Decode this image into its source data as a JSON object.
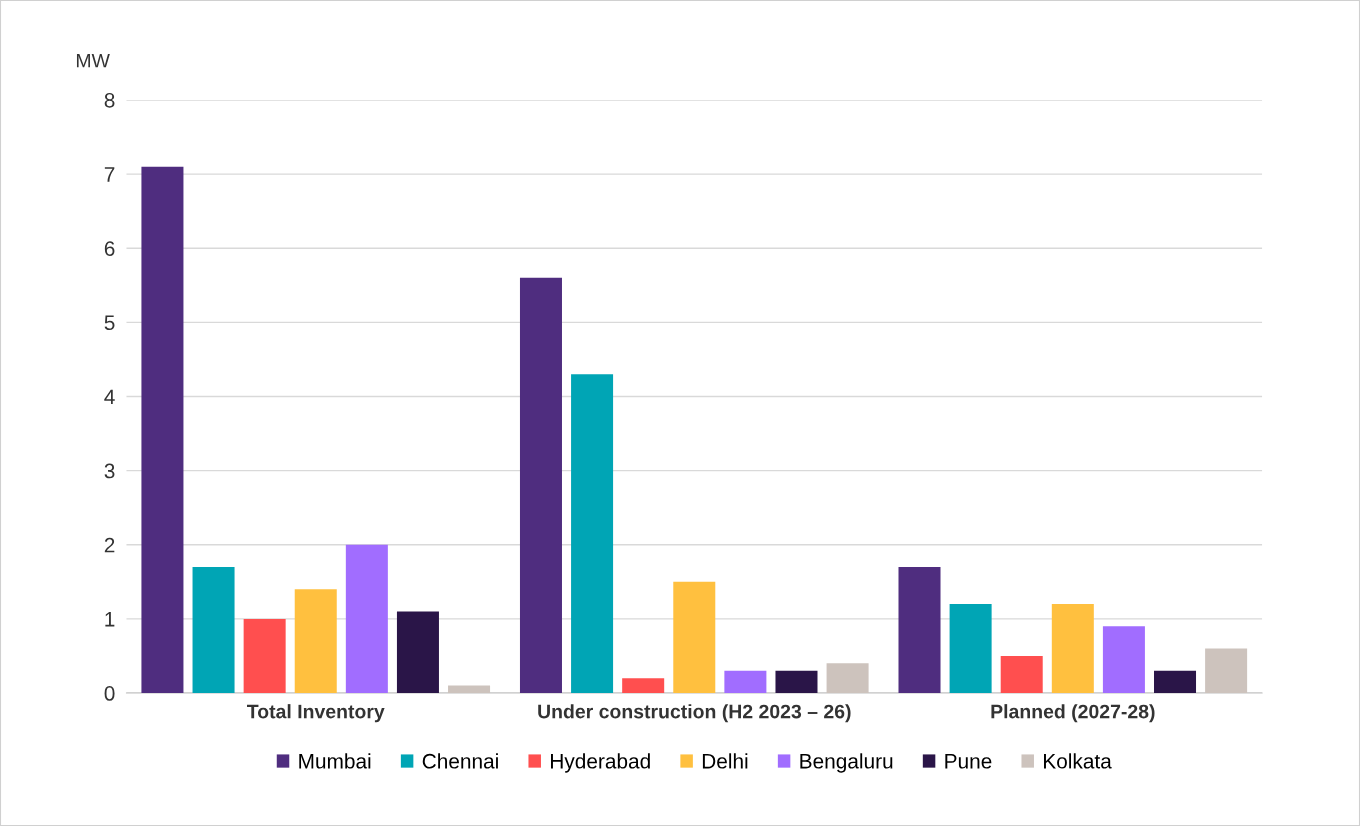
{
  "chart_data": {
    "type": "bar",
    "ylabel": "MW",
    "categories": [
      "Total Inventory",
      "Under construction (H2 2023 – 26)",
      "Planned (2027-28)"
    ],
    "series": [
      {
        "name": "Mumbai",
        "color": "#4f2d7f",
        "values": [
          7.1,
          5.6,
          1.7
        ]
      },
      {
        "name": "Chennai",
        "color": "#00a5b5",
        "values": [
          1.7,
          4.3,
          1.2
        ]
      },
      {
        "name": "Hyderabad",
        "color": "#ff4f4f",
        "values": [
          1.0,
          0.2,
          0.5
        ]
      },
      {
        "name": "Delhi",
        "color": "#ffc03f",
        "values": [
          1.4,
          1.5,
          1.2
        ]
      },
      {
        "name": "Bengaluru",
        "color": "#a16dff",
        "values": [
          2.0,
          0.3,
          0.9
        ]
      },
      {
        "name": "Pune",
        "color": "#2a1548",
        "values": [
          1.1,
          0.3,
          0.3
        ]
      },
      {
        "name": "Kolkata",
        "color": "#cdc3bd",
        "values": [
          0.1,
          0.4,
          0.6
        ]
      }
    ],
    "ylim": [
      0,
      8
    ],
    "yticks": [
      0,
      1,
      2,
      3,
      4,
      5,
      6,
      7,
      8
    ],
    "grid": "y",
    "legend": "bottom"
  }
}
